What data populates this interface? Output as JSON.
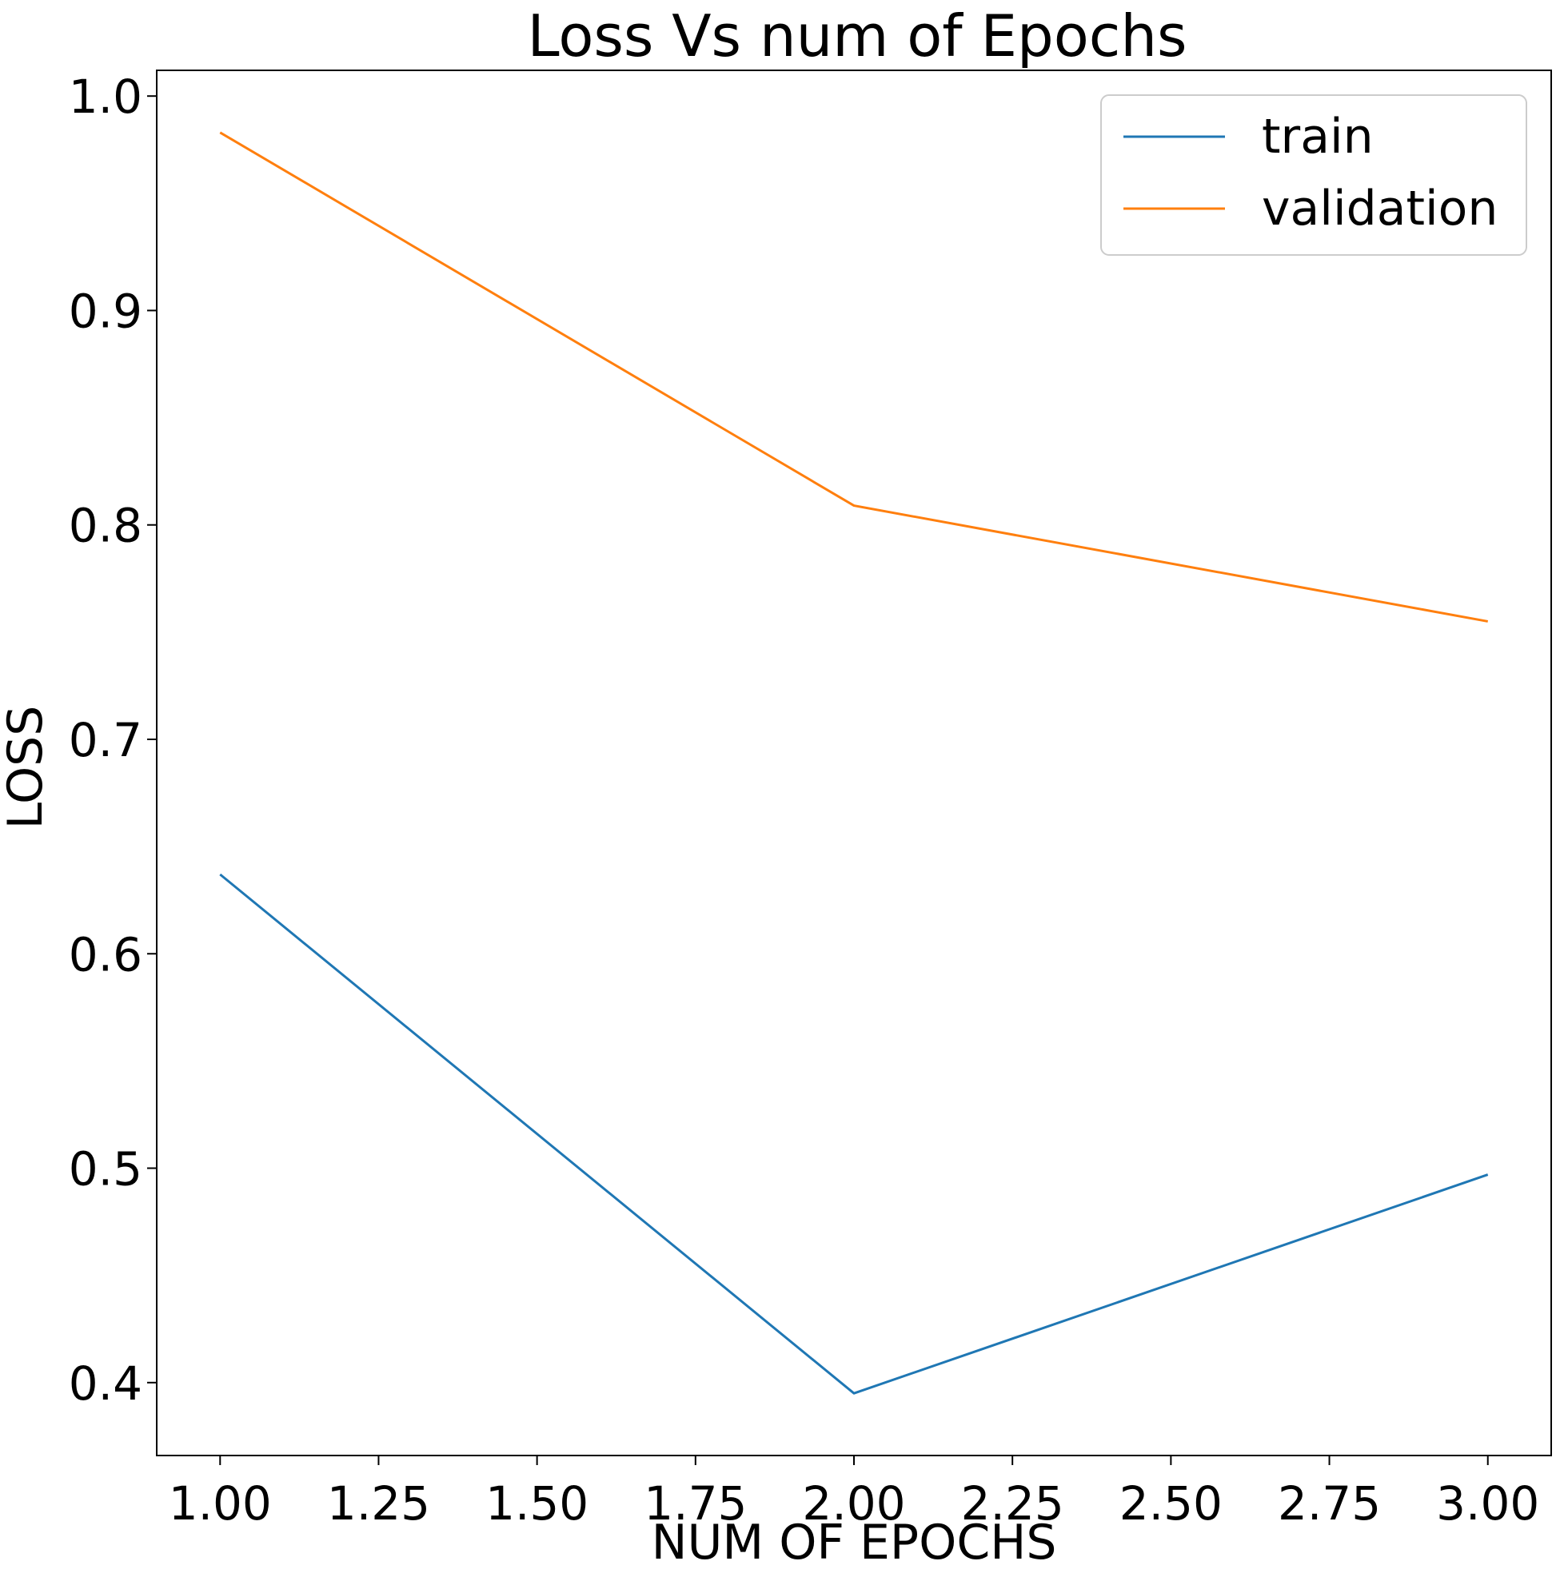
{
  "chart_data": {
    "type": "line",
    "title": "Loss Vs num of Epochs",
    "xlabel": "NUM OF EPOCHS",
    "ylabel": "LOSS",
    "xlim": [
      0.9,
      3.1
    ],
    "ylim": [
      0.366,
      1.012
    ],
    "xticks": [
      "1.00",
      "1.25",
      "1.50",
      "1.75",
      "2.00",
      "2.25",
      "2.50",
      "2.75",
      "3.00"
    ],
    "yticks": [
      "0.4",
      "0.5",
      "0.6",
      "0.7",
      "0.8",
      "0.9",
      "1.0"
    ],
    "x": [
      1,
      2,
      3
    ],
    "series": [
      {
        "name": "train",
        "color": "#1f77b4",
        "values": [
          0.637,
          0.395,
          0.497
        ]
      },
      {
        "name": "validation",
        "color": "#ff7f0e",
        "values": [
          0.983,
          0.809,
          0.755
        ]
      }
    ],
    "grid": false,
    "legend_position": "top-right"
  }
}
